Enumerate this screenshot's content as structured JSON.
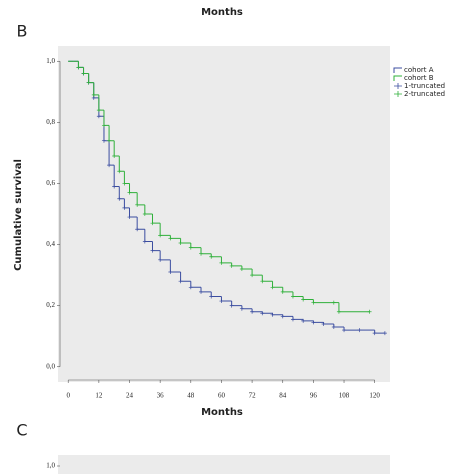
{
  "chart_data": [
    {
      "type": "line",
      "xlabel": "Months"
    },
    {
      "type": "line",
      "panel": "B",
      "xlabel": "Months",
      "ylabel": "Cumulative survival",
      "xlim": [
        -4,
        126
      ],
      "ylim": [
        -0.05,
        1.05
      ],
      "xticks": [
        0,
        12,
        24,
        36,
        48,
        60,
        72,
        84,
        96,
        108,
        120
      ],
      "yticks": [
        {
          "value": 0,
          "label": "0,0"
        },
        {
          "value": 0.2,
          "label": "0,2"
        },
        {
          "value": 0.4,
          "label": "0,4"
        },
        {
          "value": 0.6,
          "label": "0,6"
        },
        {
          "value": 0.8,
          "label": "0,8"
        },
        {
          "value": 1,
          "label": "1,0"
        }
      ],
      "series": [
        {
          "name": "cohort A",
          "censor_name": "1-truncated",
          "color": "#3b4da0",
          "x": [
            0,
            2,
            4,
            6,
            8,
            10,
            12,
            14,
            16,
            18,
            20,
            22,
            24,
            27,
            30,
            33,
            36,
            40,
            44,
            48,
            52,
            56,
            60,
            64,
            68,
            72,
            76,
            80,
            84,
            88,
            92,
            96,
            100,
            104,
            108,
            114,
            120,
            124
          ],
          "values": [
            1.0,
            1.0,
            0.98,
            0.96,
            0.93,
            0.88,
            0.82,
            0.74,
            0.66,
            0.59,
            0.55,
            0.52,
            0.49,
            0.45,
            0.41,
            0.38,
            0.35,
            0.31,
            0.28,
            0.26,
            0.245,
            0.23,
            0.215,
            0.2,
            0.19,
            0.18,
            0.175,
            0.17,
            0.165,
            0.155,
            0.15,
            0.145,
            0.14,
            0.13,
            0.12,
            0.12,
            0.11,
            0.11
          ]
        },
        {
          "name": "cohort B",
          "censor_name": "2-truncated",
          "color": "#2fb03a",
          "x": [
            0,
            2,
            4,
            6,
            8,
            10,
            12,
            14,
            16,
            18,
            20,
            22,
            24,
            27,
            30,
            33,
            36,
            40,
            44,
            48,
            52,
            56,
            60,
            64,
            68,
            72,
            76,
            80,
            84,
            88,
            92,
            96,
            104,
            106,
            118
          ],
          "values": [
            1.0,
            1.0,
            0.98,
            0.96,
            0.93,
            0.89,
            0.84,
            0.79,
            0.74,
            0.69,
            0.64,
            0.6,
            0.57,
            0.53,
            0.5,
            0.47,
            0.43,
            0.42,
            0.405,
            0.39,
            0.37,
            0.36,
            0.34,
            0.33,
            0.32,
            0.3,
            0.28,
            0.26,
            0.245,
            0.23,
            0.22,
            0.21,
            0.21,
            0.18,
            0.18
          ]
        }
      ]
    },
    {
      "type": "line",
      "panel": "C",
      "yticks": [
        {
          "value": 1,
          "label": "1,0"
        }
      ]
    }
  ]
}
